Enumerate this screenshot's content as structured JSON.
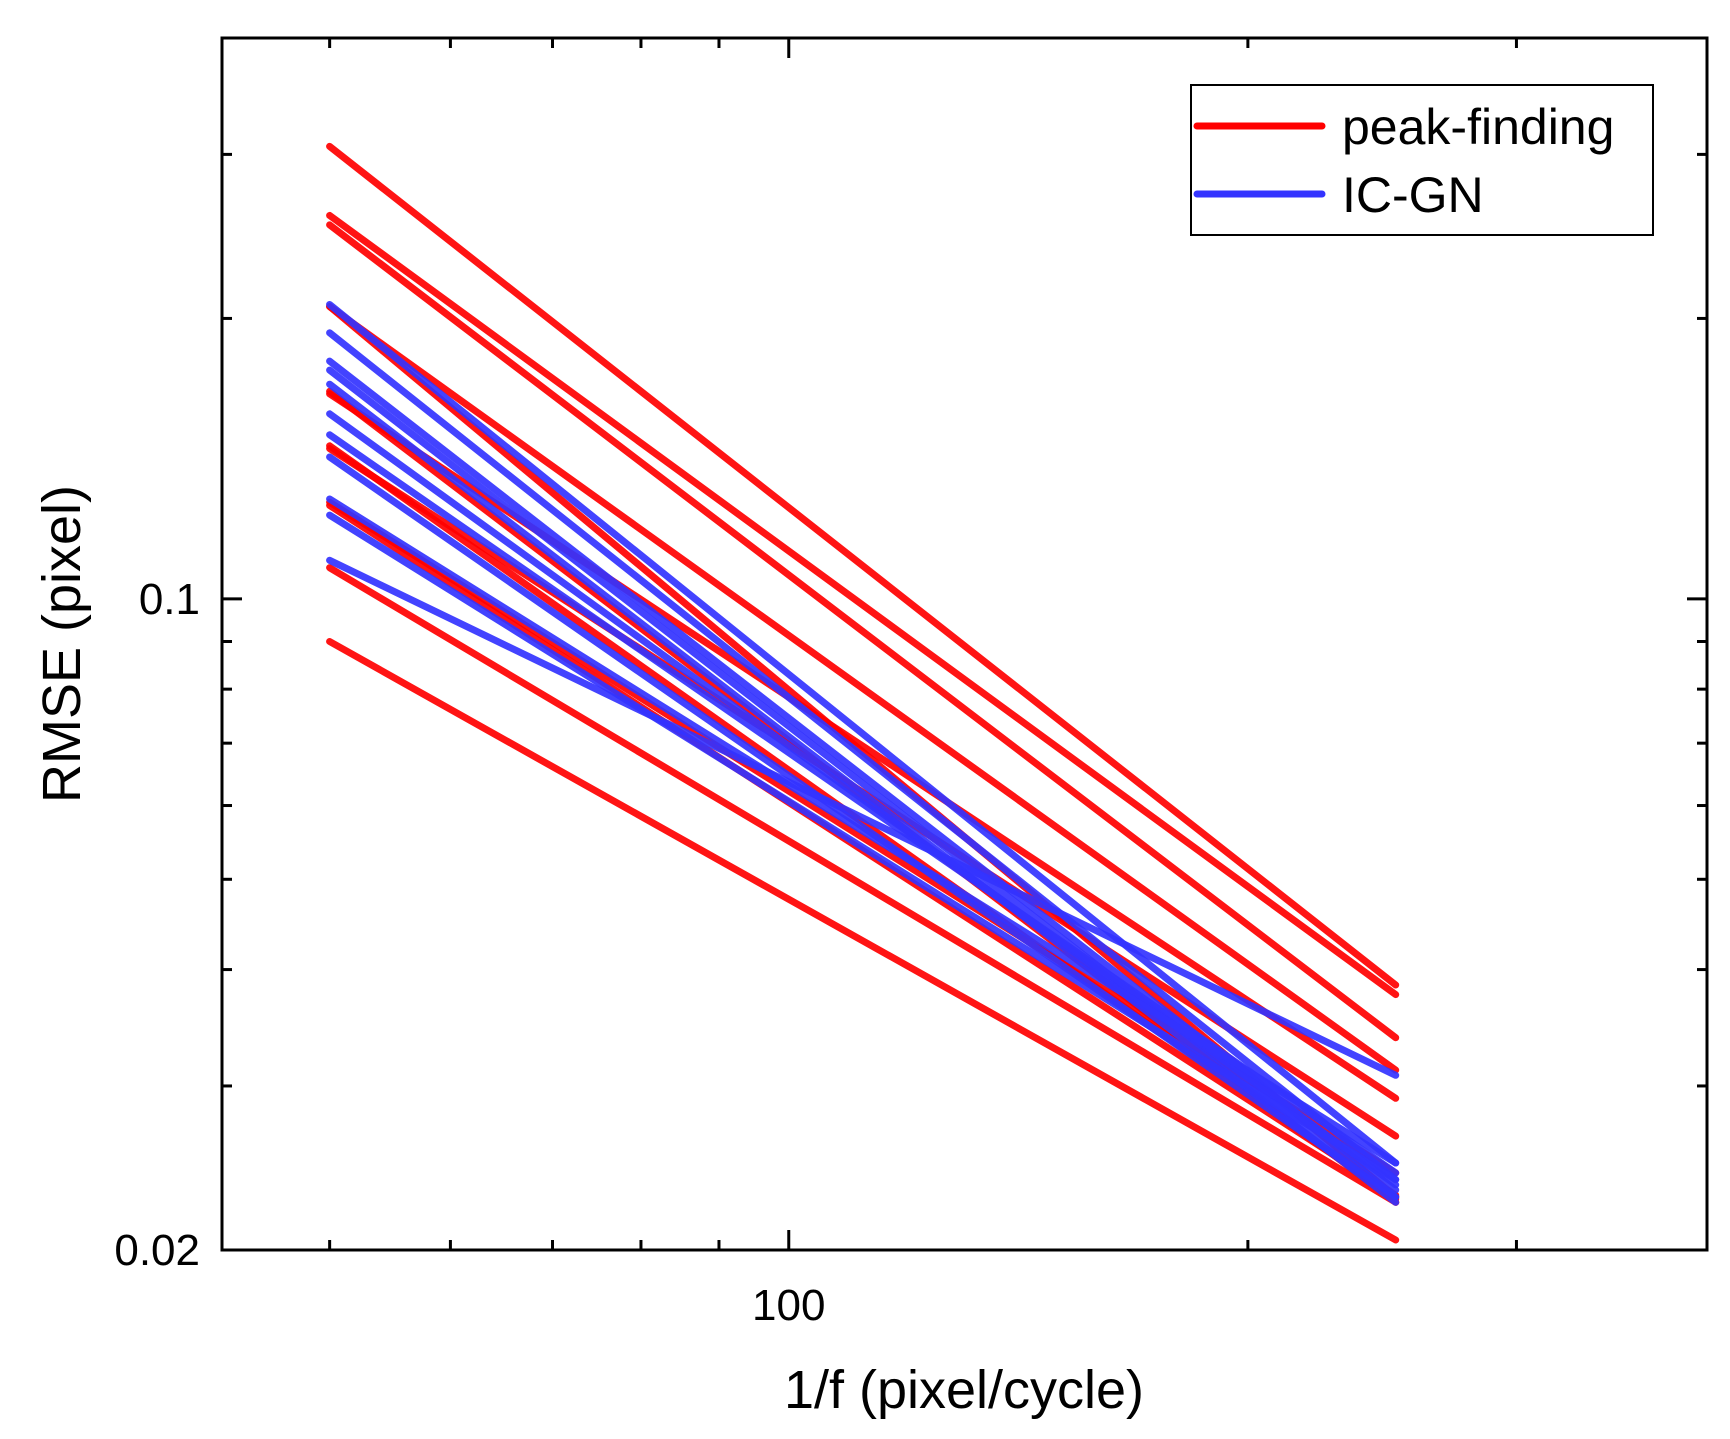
{
  "chart_data": {
    "type": "line",
    "title": "",
    "xlabel": "1/f (pixel/cycle)",
    "ylabel": "RMSE (pixel)",
    "xscale": "log",
    "yscale": "log",
    "xlim": [
      42.5,
      400
    ],
    "ylim": [
      0.02,
      0.4
    ],
    "x_ticks": [
      {
        "value": 100,
        "label": "100"
      }
    ],
    "y_ticks": [
      {
        "value": 0.02,
        "label": "0.02"
      },
      {
        "value": 0.1,
        "label": "0.1"
      }
    ],
    "x": [
      50,
      250
    ],
    "legend": {
      "position": "top-right",
      "entries": [
        {
          "name": "peak-finding",
          "color": "#ff0000"
        },
        {
          "name": "IC-GN",
          "color": "#3333ff"
        }
      ]
    },
    "series": [
      {
        "name": "peak-finding",
        "color": "#ff0000",
        "values": [
          0.306,
          0.0385
        ]
      },
      {
        "name": "peak-finding",
        "color": "#ff0000",
        "values": [
          0.258,
          0.0376
        ]
      },
      {
        "name": "peak-finding",
        "color": "#ff0000",
        "values": [
          0.252,
          0.0338
        ]
      },
      {
        "name": "peak-finding",
        "color": "#ff0000",
        "values": [
          0.206,
          0.0312
        ]
      },
      {
        "name": "peak-finding",
        "color": "#ff0000",
        "values": [
          0.166,
          0.0291
        ]
      },
      {
        "name": "peak-finding",
        "color": "#ff0000",
        "values": [
          0.145,
          0.0265
        ]
      },
      {
        "name": "peak-finding",
        "color": "#ff0000",
        "values": [
          0.127,
          0.0242
        ]
      },
      {
        "name": "peak-finding",
        "color": "#ff0000",
        "values": [
          0.108,
          0.0225
        ]
      },
      {
        "name": "peak-finding",
        "color": "#ff0000",
        "values": [
          0.206,
          0.0228
        ]
      },
      {
        "name": "peak-finding",
        "color": "#ff0000",
        "values": [
          0.167,
          0.0225
        ]
      },
      {
        "name": "peak-finding",
        "color": "#ff0000",
        "values": [
          0.146,
          0.0227
        ]
      },
      {
        "name": "peak-finding",
        "color": "#ff0000",
        "values": [
          0.126,
          0.0229
        ]
      },
      {
        "name": "peak-finding",
        "color": "#ff0000",
        "values": [
          0.09,
          0.0205
        ]
      },
      {
        "name": "IC-GN",
        "color": "#3333ff",
        "values": [
          0.207,
          0.0248
        ]
      },
      {
        "name": "IC-GN",
        "color": "#3333ff",
        "values": [
          0.193,
          0.0238
        ]
      },
      {
        "name": "IC-GN",
        "color": "#3333ff",
        "values": [
          0.18,
          0.0232
        ]
      },
      {
        "name": "IC-GN",
        "color": "#3333ff",
        "values": [
          0.176,
          0.0228
        ]
      },
      {
        "name": "IC-GN",
        "color": "#3333ff",
        "values": [
          0.17,
          0.0225
        ]
      },
      {
        "name": "IC-GN",
        "color": "#3333ff",
        "values": [
          0.158,
          0.0235
        ]
      },
      {
        "name": "IC-GN",
        "color": "#3333ff",
        "values": [
          0.15,
          0.0242
        ]
      },
      {
        "name": "IC-GN",
        "color": "#3333ff",
        "values": [
          0.142,
          0.0228
        ]
      },
      {
        "name": "IC-GN",
        "color": "#3333ff",
        "values": [
          0.128,
          0.0248
        ]
      },
      {
        "name": "IC-GN",
        "color": "#3333ff",
        "values": [
          0.123,
          0.0238
        ]
      },
      {
        "name": "IC-GN",
        "color": "#3333ff",
        "values": [
          0.11,
          0.0308
        ]
      }
    ]
  }
}
